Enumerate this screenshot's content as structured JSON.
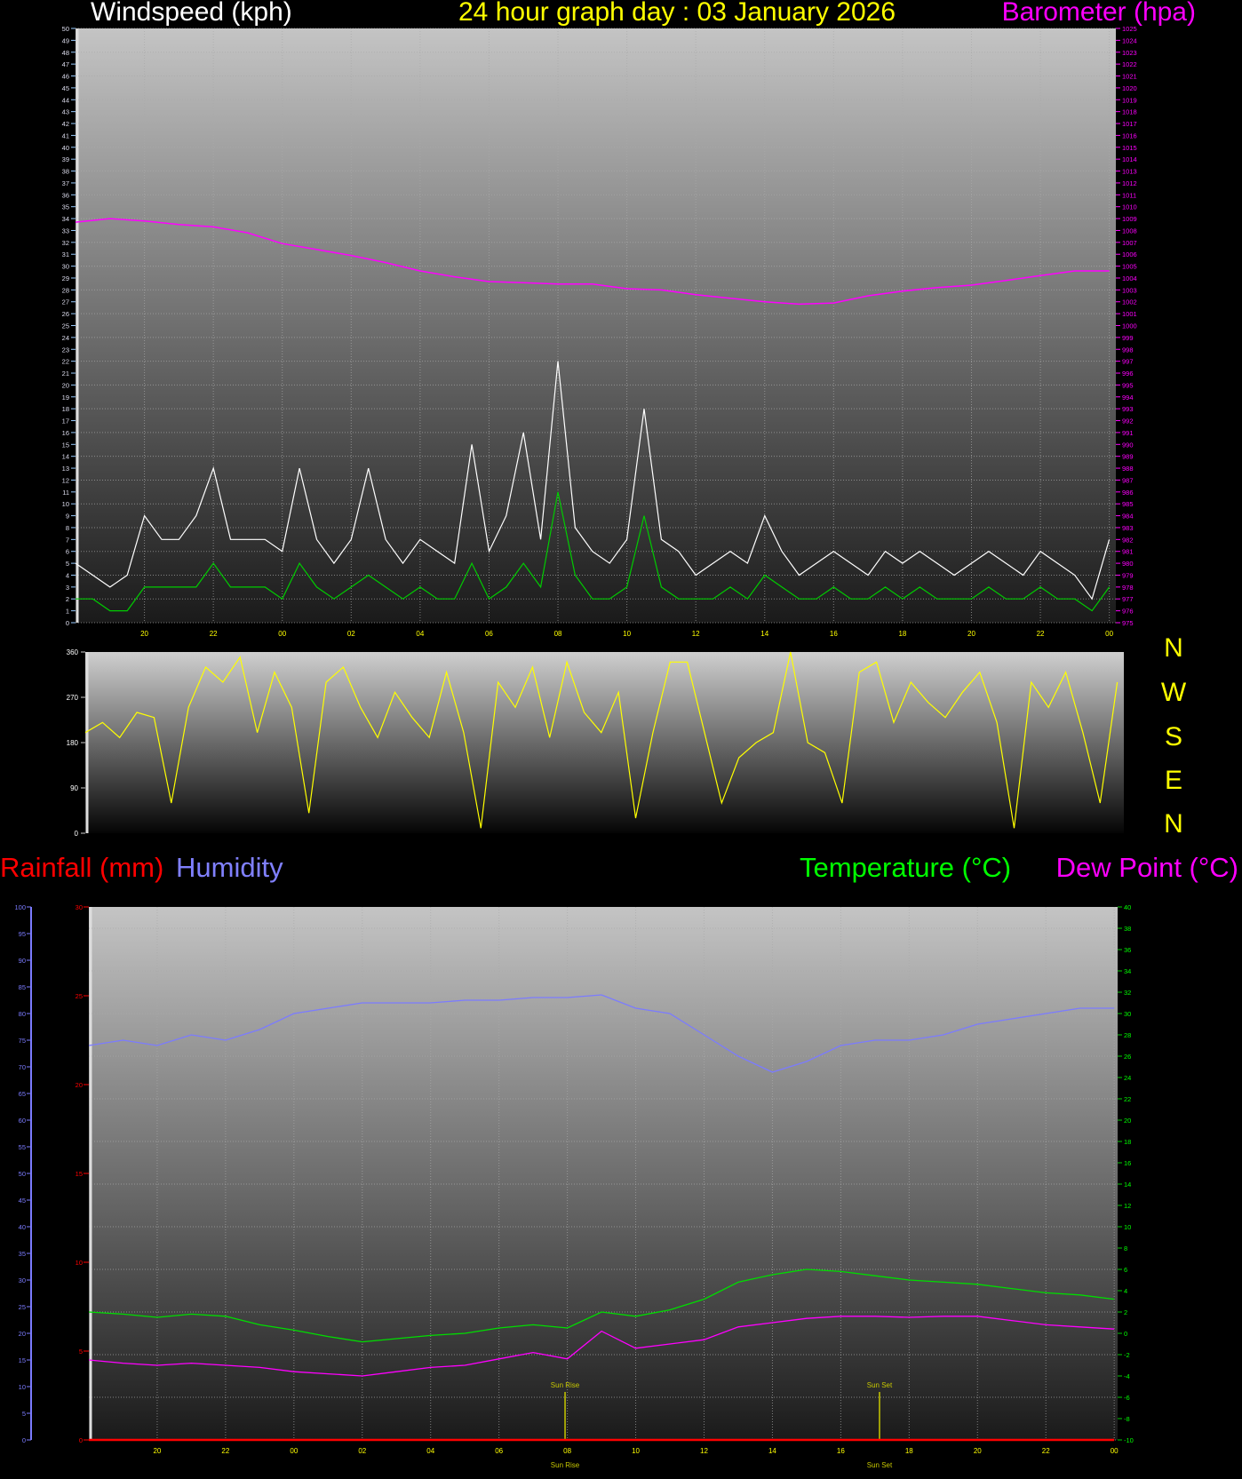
{
  "header": {
    "windspeed_title": "Windspeed (kph)",
    "graph_title": "24 hour graph day : 03 January 2026",
    "barometer_title": "Barometer (hpa)",
    "rainfall_title": "Rainfall (mm)",
    "humidity_title": "Humidity",
    "temperature_title": "Temperature (°C)",
    "dewpoint_title": "Dew Point (°C)"
  },
  "direction_labels": [
    "N",
    "W",
    "S",
    "E",
    "N"
  ],
  "colors": {
    "windspeed_gust": "#ffffff",
    "windspeed_avg": "#00cc00",
    "barometer": "#ff00ff",
    "direction": "#ffff00",
    "rainfall": "#ff0000",
    "humidity": "#7b7bff",
    "temperature": "#00dd00",
    "dewpoint": "#ff00ff",
    "sun_marker": "#c8c800"
  },
  "chart_data": [
    {
      "type": "line",
      "panel": "wind-barometer",
      "x_tick_labels": [
        "20",
        "22",
        "00",
        "02",
        "04",
        "06",
        "08",
        "10",
        "12",
        "14",
        "16",
        "18",
        "20",
        "22",
        "00"
      ],
      "y_left": {
        "label": "Windspeed (kph)",
        "range": [
          0,
          50
        ],
        "step": 1
      },
      "y_right": {
        "label": "Barometer (hpa)",
        "range": [
          975,
          1025
        ],
        "step": 1
      },
      "grid": true,
      "halfhour_times": [
        "18:00",
        "18:30",
        "19:00",
        "19:30",
        "20:00",
        "20:30",
        "21:00",
        "21:30",
        "22:00",
        "22:30",
        "23:00",
        "23:30",
        "00:00",
        "00:30",
        "01:00",
        "01:30",
        "02:00",
        "02:30",
        "03:00",
        "03:30",
        "04:00",
        "04:30",
        "05:00",
        "05:30",
        "06:00",
        "06:30",
        "07:00",
        "07:30",
        "08:00",
        "08:30",
        "09:00",
        "09:30",
        "10:00",
        "10:30",
        "11:00",
        "11:30",
        "12:00",
        "12:30",
        "13:00",
        "13:30",
        "14:00",
        "14:30",
        "15:00",
        "15:30",
        "16:00",
        "16:30",
        "17:00",
        "17:30",
        "18:00",
        "18:30",
        "19:00",
        "19:30",
        "20:00",
        "20:30",
        "21:00",
        "21:30",
        "22:00",
        "22:30",
        "23:00",
        "23:30",
        "00:00"
      ],
      "hourly_times": [
        "18:00",
        "19:00",
        "20:00",
        "21:00",
        "22:00",
        "23:00",
        "00:00",
        "01:00",
        "02:00",
        "03:00",
        "04:00",
        "05:00",
        "06:00",
        "07:00",
        "08:00",
        "09:00",
        "10:00",
        "11:00",
        "12:00",
        "13:00",
        "14:00",
        "15:00",
        "16:00",
        "17:00",
        "18:00",
        "19:00",
        "20:00",
        "21:00",
        "22:00",
        "23:00",
        "00:00"
      ],
      "series": [
        {
          "key": "gust",
          "axis": "left",
          "values": [
            5,
            4,
            3,
            4,
            9,
            7,
            7,
            9,
            13,
            7,
            7,
            7,
            6,
            13,
            7,
            5,
            7,
            13,
            7,
            5,
            7,
            6,
            5,
            15,
            6,
            9,
            16,
            7,
            22,
            8,
            6,
            5,
            7,
            18,
            7,
            6,
            4,
            5,
            6,
            5,
            9,
            6,
            4,
            5,
            6,
            5,
            4,
            6,
            5,
            6,
            5,
            4,
            5,
            6,
            5,
            4,
            6,
            5,
            4,
            2,
            7
          ]
        },
        {
          "key": "average",
          "axis": "left",
          "values": [
            2,
            2,
            1,
            1,
            3,
            3,
            3,
            3,
            5,
            3,
            3,
            3,
            2,
            5,
            3,
            2,
            3,
            4,
            3,
            2,
            3,
            2,
            2,
            5,
            2,
            3,
            5,
            3,
            11,
            4,
            2,
            2,
            3,
            9,
            3,
            2,
            2,
            2,
            3,
            2,
            4,
            3,
            2,
            2,
            3,
            2,
            2,
            3,
            2,
            3,
            2,
            2,
            2,
            3,
            2,
            2,
            3,
            2,
            2,
            1,
            3
          ]
        },
        {
          "key": "barometer",
          "axis": "right",
          "values": [
            1008.7,
            1009.0,
            1008.8,
            1008.5,
            1008.3,
            1007.8,
            1006.9,
            1006.4,
            1005.9,
            1005.3,
            1004.6,
            1004.1,
            1003.7,
            1003.6,
            1003.5,
            1003.5,
            1003.1,
            1003.0,
            1002.6,
            1002.3,
            1002.0,
            1001.8,
            1001.9,
            1002.5,
            1002.9,
            1003.2,
            1003.4,
            1003.8,
            1004.2,
            1004.6,
            1004.6
          ]
        }
      ]
    },
    {
      "type": "line",
      "panel": "wind-direction",
      "y_left": {
        "range": [
          0,
          360
        ],
        "ticks": [
          0,
          90,
          180,
          270,
          360
        ]
      },
      "grid": false,
      "series": [
        {
          "key": "direction",
          "values": [
            200,
            220,
            190,
            240,
            230,
            60,
            250,
            330,
            300,
            350,
            200,
            320,
            250,
            40,
            300,
            330,
            250,
            190,
            280,
            230,
            190,
            320,
            200,
            10,
            300,
            250,
            330,
            190,
            340,
            240,
            200,
            280,
            30,
            200,
            340,
            340,
            200,
            60,
            150,
            180,
            200,
            360,
            180,
            160,
            60,
            320,
            340,
            220,
            300,
            260,
            230,
            280,
            320,
            220,
            10,
            300,
            250,
            320,
            200,
            60,
            300
          ]
        }
      ]
    },
    {
      "type": "line",
      "panel": "temp-humidity-rain",
      "x_tick_labels": [
        "20",
        "22",
        "00",
        "02",
        "04",
        "06",
        "08",
        "10",
        "12",
        "14",
        "16",
        "18",
        "20",
        "22",
        "00"
      ],
      "y_humidity": {
        "label": "Humidity",
        "range": [
          0,
          100
        ],
        "step": 5
      },
      "y_rain": {
        "label": "Rainfall (mm)",
        "range": [
          0,
          30
        ],
        "step": 5
      },
      "y_temp": {
        "label": "Temperature (°C)",
        "range": [
          -10,
          40
        ],
        "step": 2
      },
      "grid": true,
      "series": [
        {
          "key": "humidity",
          "values": [
            74,
            75,
            74,
            76,
            75,
            77,
            80,
            81,
            82,
            82,
            82,
            82.5,
            82.5,
            83,
            83,
            83.5,
            81,
            80,
            76,
            72,
            69,
            71,
            74,
            75,
            75,
            76,
            78,
            79,
            80,
            81,
            81
          ]
        },
        {
          "key": "temperature",
          "values": [
            2.0,
            1.8,
            1.5,
            1.8,
            1.6,
            0.8,
            0.3,
            -0.3,
            -0.8,
            -0.5,
            -0.2,
            0.0,
            0.5,
            0.8,
            0.5,
            2.0,
            1.6,
            2.2,
            3.2,
            4.8,
            5.5,
            6.0,
            5.8,
            5.4,
            5.0,
            4.8,
            4.6,
            4.2,
            3.8,
            3.6,
            3.2
          ]
        },
        {
          "key": "dewpoint",
          "values": [
            -2.5,
            -2.8,
            -3.0,
            -2.8,
            -3.0,
            -3.2,
            -3.6,
            -3.8,
            -4.0,
            -3.6,
            -3.2,
            -3.0,
            -2.4,
            -1.8,
            -2.4,
            0.2,
            -1.4,
            -1.0,
            -0.6,
            0.6,
            1.0,
            1.4,
            1.6,
            1.6,
            1.5,
            1.6,
            1.6,
            1.2,
            0.8,
            0.6,
            0.4
          ]
        },
        {
          "key": "rainfall",
          "values": [
            0,
            0,
            0,
            0,
            0,
            0,
            0,
            0,
            0,
            0,
            0,
            0,
            0,
            0,
            0,
            0,
            0,
            0,
            0,
            0,
            0,
            0,
            0,
            0,
            0,
            0,
            0,
            0,
            0,
            0,
            0
          ]
        }
      ],
      "annotations": [
        {
          "label": "Sun Rise",
          "time": "07:56"
        },
        {
          "label": "Sun Set",
          "time": "17:08"
        }
      ]
    }
  ]
}
